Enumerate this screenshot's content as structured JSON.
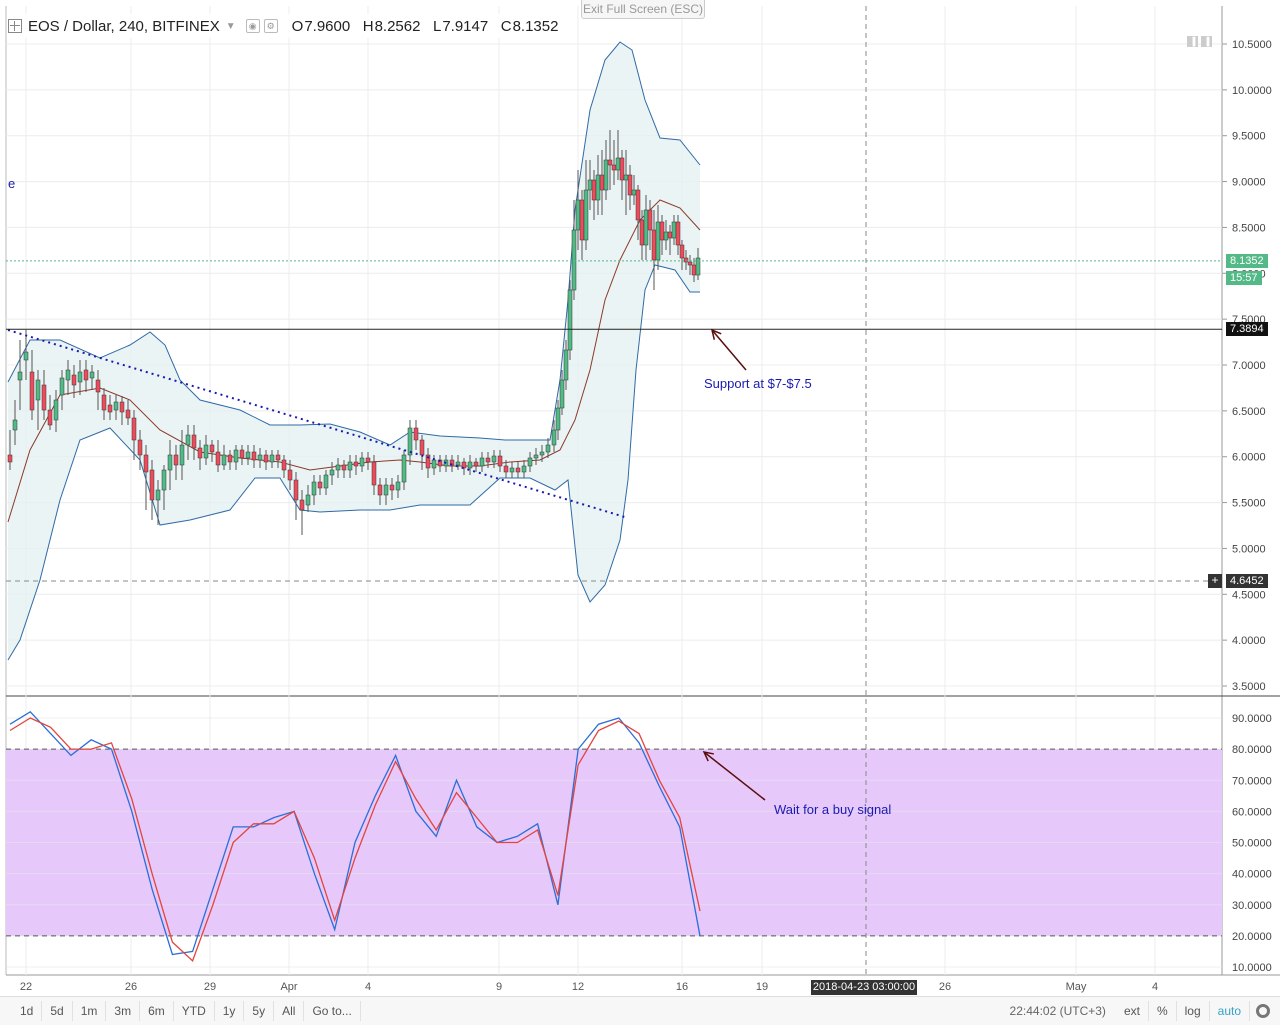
{
  "header": {
    "title": "EOS / Dollar, 240, BITFINEX",
    "open_label": "O",
    "open": "7.9600",
    "high_label": "H",
    "high": "8.2562",
    "low_label": "L",
    "low": "7.9147",
    "close_label": "C",
    "close": "8.1352"
  },
  "exit_fullscreen": "Exit Full Screen (ESC)",
  "side_marker": "e",
  "annotations": {
    "support": "Support at $7-$7.5",
    "signal": "Wait for a buy signal"
  },
  "price_labels": {
    "last": "8.1352",
    "countdown": "15:57",
    "line": "7.3894",
    "cursor": "4.6452"
  },
  "date_cursor": "2018-04-23 03:00:00",
  "toolbar": {
    "ranges": [
      "1d",
      "5d",
      "1m",
      "3m",
      "6m",
      "YTD",
      "1y",
      "5y",
      "All"
    ],
    "goto": "Go to...",
    "time": "22:44:02 (UTC+3)",
    "ext": "ext",
    "percent": "%",
    "log": "log",
    "auto": "auto"
  },
  "colors": {
    "candle_up": "#53b987",
    "candle_down": "#eb4d5c",
    "bollinger": "#2f6aa5",
    "band_fill": "#e3f0f2",
    "ma": "#8b3a2a",
    "trendline": "#1a1ab0",
    "stoch_k": "#2a6fd6",
    "stoch_d": "#e3453d",
    "stoch_zone": "#e6c8fb",
    "annotation_arrow": "#5a0e0e"
  },
  "chart_data": [
    {
      "type": "candlestick",
      "symbol": "EOS / Dollar",
      "interval": "240",
      "exchange": "BITFINEX",
      "y_ticks": [
        "10.5000",
        "10.0000",
        "9.5000",
        "9.0000",
        "8.5000",
        "8.0000",
        "7.5000",
        "7.0000",
        "6.5000",
        "6.0000",
        "5.5000",
        "5.0000",
        "4.5000",
        "4.0000",
        "3.5000"
      ],
      "x_ticks": [
        "22",
        "26",
        "29",
        "Apr",
        "4",
        "9",
        "12",
        "16",
        "19",
        "26",
        "May",
        "4"
      ],
      "ylim": [
        3.3,
        10.85
      ],
      "last_price": 8.1352,
      "horizontal_line": 7.3894,
      "cursor_price": 4.6452,
      "indicators": [
        "Bollinger Bands",
        "Moving Average",
        "Trendline"
      ]
    },
    {
      "type": "line",
      "name": "Stochastic",
      "y_ticks": [
        "90.0000",
        "80.0000",
        "70.0000",
        "60.0000",
        "50.0000",
        "40.0000",
        "30.0000",
        "20.0000",
        "10.0000"
      ],
      "ylim": [
        5,
        95
      ],
      "upper_band": 80,
      "lower_band": 20,
      "series": [
        {
          "values": [
            88,
            92,
            85,
            78,
            83,
            80,
            60,
            35,
            14,
            15,
            35,
            55,
            55,
            58,
            60,
            40,
            22,
            50,
            65,
            78,
            60,
            52,
            70,
            55,
            50,
            52,
            56,
            30,
            80,
            88,
            90,
            82,
            68,
            55,
            20
          ]
        },
        {
          "values": [
            86,
            90,
            87,
            80,
            80,
            82,
            64,
            40,
            18,
            12,
            30,
            50,
            56,
            56,
            60,
            45,
            25,
            45,
            62,
            76,
            64,
            54,
            66,
            58,
            50,
            50,
            54,
            33,
            75,
            86,
            89,
            85,
            70,
            58,
            28
          ]
        }
      ]
    }
  ]
}
